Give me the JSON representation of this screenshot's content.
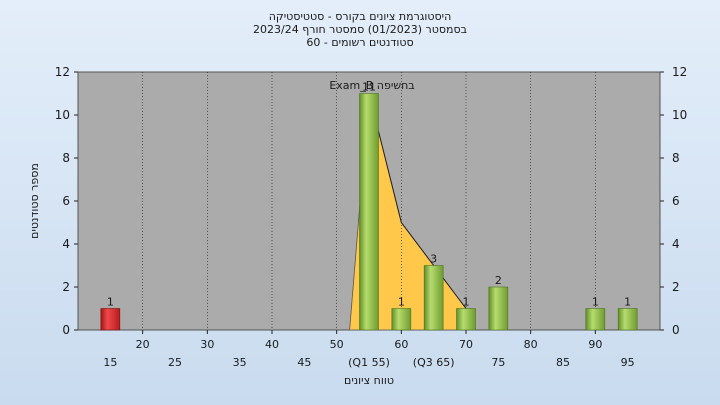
{
  "title_lines": [
    "היסטוגרמת ציונים בקורס - סטטיסטיקה",
    "בסמסטר  (01/2023)  סמסטר חורף  2023/24",
    "סטודנטים רשומים - 60"
  ],
  "colors": {
    "background_top": "#e4eefa",
    "background_bottom": "#c9dbef",
    "plot_bg": "#ababab",
    "bar_green": "#8cc04a",
    "bar_red": "#e02a2a",
    "area_fill": "#ffc84a",
    "gridline": "#1a1a1a"
  },
  "chart_data": {
    "type": "bar",
    "ylabel": "מספר סטודנטים",
    "xlabel": "טווח ציונים",
    "ylim": [
      0,
      12
    ],
    "yticks": [
      0,
      2,
      4,
      6,
      8,
      10,
      12
    ],
    "xlim": [
      10,
      100
    ],
    "xticks_row1": [
      {
        "x": 20,
        "label": "20"
      },
      {
        "x": 30,
        "label": "30"
      },
      {
        "x": 40,
        "label": "40"
      },
      {
        "x": 50,
        "label": "50"
      },
      {
        "x": 60,
        "label": "60"
      },
      {
        "x": 70,
        "label": "70"
      },
      {
        "x": 80,
        "label": "80"
      },
      {
        "x": 90,
        "label": "90"
      }
    ],
    "xticks_row2": [
      {
        "x": 15,
        "label": "15"
      },
      {
        "x": 25,
        "label": "25"
      },
      {
        "x": 35,
        "label": "35"
      },
      {
        "x": 45,
        "label": "45"
      },
      {
        "x": 55,
        "label": "(Q1 55)"
      },
      {
        "x": 65,
        "label": "(Q3 65)"
      },
      {
        "x": 75,
        "label": "75"
      },
      {
        "x": 85,
        "label": "85"
      },
      {
        "x": 95,
        "label": "95"
      }
    ],
    "bars": [
      {
        "x": 15,
        "value": 1,
        "label": "1",
        "color": "red"
      },
      {
        "x": 55,
        "value": 11,
        "label": "11",
        "color": "green"
      },
      {
        "x": 60,
        "value": 1,
        "label": "1",
        "color": "green"
      },
      {
        "x": 65,
        "value": 3,
        "label": "3",
        "color": "green"
      },
      {
        "x": 70,
        "value": 1,
        "label": "1",
        "color": "green"
      },
      {
        "x": 75,
        "value": 2,
        "label": "2",
        "color": "green"
      },
      {
        "x": 90,
        "value": 1,
        "label": "1",
        "color": "green"
      },
      {
        "x": 95,
        "value": 1,
        "label": "1",
        "color": "green"
      }
    ],
    "area_series": {
      "name": "Exam_B בחשיפה",
      "points": [
        [
          55,
          11
        ],
        [
          60,
          5
        ],
        [
          65,
          3
        ],
        [
          70,
          1
        ]
      ],
      "baseline_start": 52
    }
  }
}
